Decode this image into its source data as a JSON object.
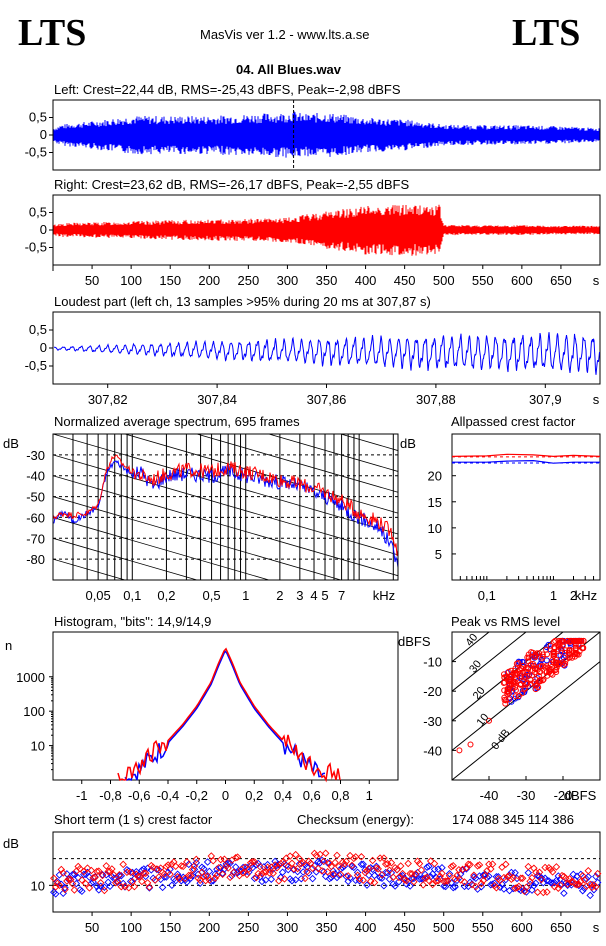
{
  "header": {
    "logo_left": "LTS",
    "logo_right": "LTS",
    "app_title": "MasVis ver 1.2 - www.lts.a.se",
    "file_title": "04. All Blues.wav"
  },
  "colors": {
    "left": "#0000ff",
    "right": "#ff0000",
    "text": "#000000"
  },
  "panels": {
    "left_title": "Left: Crest=22,44 dB, RMS=-25,43 dBFS, Peak=-2,98 dBFS",
    "right_title": "Right: Crest=23,62 dB, RMS=-26,17 dBFS, Peak=-2,55 dBFS",
    "loudest_title": "Loudest part (left  ch, 13 samples >95% during 20 ms at 307,87 s)",
    "spectrum_title": "Normalized average spectrum, 695 frames",
    "allpass_title": "Allpassed crest factor",
    "histogram_title": "Histogram, \"bits\": 14,9/14,9",
    "peakrms_title": "Peak vs RMS level",
    "shortcrest_title": "Short term (1 s) crest factor",
    "checksum_label": "Checksum (energy):",
    "checksum_value": "174 088 345 114 386"
  },
  "chart_data": [
    {
      "id": "left_waveform",
      "type": "area",
      "title": "Left: Crest=22,44 dB, RMS=-25,43 dBFS, Peak=-2,98 dBFS",
      "series": [
        {
          "name": "Left",
          "color": "#0000ff"
        }
      ],
      "x_range": [
        0,
        700
      ],
      "xlabel": "s",
      "ylim": [
        -1,
        1
      ],
      "yticks": [
        "0,5",
        "0",
        "-0,5"
      ],
      "envelope_x": [
        0,
        10,
        50,
        100,
        150,
        200,
        250,
        300,
        307,
        320,
        350,
        400,
        450,
        500,
        550,
        600,
        650,
        695
      ],
      "envelope_peak": [
        0.2,
        0.3,
        0.4,
        0.55,
        0.55,
        0.55,
        0.6,
        0.65,
        0.71,
        0.6,
        0.65,
        0.5,
        0.45,
        0.3,
        0.28,
        0.28,
        0.25,
        0.2
      ],
      "marker_x": 307.87
    },
    {
      "id": "right_waveform",
      "type": "area",
      "title": "Right: Crest=23,62 dB, RMS=-26,17 dBFS, Peak=-2,55 dBFS",
      "series": [
        {
          "name": "Right",
          "color": "#ff0000"
        }
      ],
      "x_range": [
        0,
        700
      ],
      "xlabel": "s",
      "ylim": [
        -1,
        1
      ],
      "yticks": [
        "0,5",
        "0",
        "-0,5"
      ],
      "xticks": [
        "50",
        "100",
        "150",
        "200",
        "250",
        "300",
        "350",
        "400",
        "450",
        "500",
        "550",
        "600",
        "650",
        "s"
      ],
      "envelope_x": [
        0,
        10,
        50,
        100,
        150,
        200,
        250,
        300,
        350,
        400,
        450,
        495,
        500,
        550,
        600,
        650,
        695
      ],
      "envelope_peak": [
        0.15,
        0.2,
        0.22,
        0.25,
        0.28,
        0.3,
        0.32,
        0.35,
        0.55,
        0.7,
        0.74,
        0.72,
        0.15,
        0.14,
        0.14,
        0.13,
        0.12
      ]
    },
    {
      "id": "loudest_part",
      "type": "line",
      "title": "Loudest part (left  ch, 13 samples >95% during 20 ms at 307,87 s)",
      "series": [
        {
          "name": "Left",
          "color": "#0000ff"
        }
      ],
      "x_range": [
        307.81,
        307.91
      ],
      "xlabel": "s",
      "ylim": [
        -1,
        1
      ],
      "yticks": [
        "0,5",
        "0",
        "-0,5"
      ],
      "xticks": [
        "307,82",
        "307,84",
        "307,86",
        "307,88",
        "307,9",
        "s"
      ],
      "envelope_x": [
        307.81,
        307.82,
        307.84,
        307.86,
        307.88,
        307.91
      ],
      "envelope_peak": [
        0.05,
        0.15,
        0.35,
        0.5,
        0.65,
        0.75
      ],
      "cycles": 62
    },
    {
      "id": "spectrum",
      "type": "line",
      "title": "Normalized average spectrum, 695 frames",
      "xscale": "log",
      "xlabel": "kHz",
      "ylabel": "dB",
      "xlim": [
        0.02,
        22
      ],
      "ylim": [
        -90,
        -20
      ],
      "xticks": [
        "0,05",
        "0,1",
        "0,2",
        "0,5",
        "1",
        "2",
        "3",
        "4",
        "5",
        "7",
        "kHz"
      ],
      "yticks": [
        "-30",
        "-40",
        "-50",
        "-60",
        "-70",
        "-80"
      ],
      "series": [
        {
          "name": "Left",
          "color": "#0000ff",
          "x": [
            0.02,
            0.025,
            0.03,
            0.04,
            0.05,
            0.06,
            0.07,
            0.08,
            0.1,
            0.12,
            0.15,
            0.2,
            0.3,
            0.5,
            0.7,
            1,
            1.5,
            2,
            3,
            4,
            5,
            7,
            10,
            15,
            20,
            22
          ],
          "y": [
            -62,
            -57,
            -62,
            -58,
            -55,
            -38,
            -33,
            -35,
            -40,
            -38,
            -45,
            -40,
            -39,
            -40,
            -38,
            -40,
            -42,
            -43,
            -45,
            -48,
            -50,
            -55,
            -60,
            -65,
            -75,
            -85
          ]
        },
        {
          "name": "Right",
          "color": "#ff0000",
          "x": [
            0.02,
            0.025,
            0.03,
            0.04,
            0.05,
            0.06,
            0.07,
            0.08,
            0.1,
            0.12,
            0.15,
            0.2,
            0.3,
            0.5,
            0.7,
            1,
            1.5,
            2,
            3,
            4,
            5,
            7,
            10,
            15,
            20,
            22
          ],
          "y": [
            -60,
            -58,
            -59,
            -58,
            -54,
            -36,
            -30,
            -34,
            -38,
            -40,
            -42,
            -39,
            -37,
            -38,
            -36,
            -38,
            -40,
            -42,
            -44,
            -46,
            -48,
            -52,
            -58,
            -62,
            -68,
            -78
          ]
        }
      ]
    },
    {
      "id": "allpass_crest",
      "type": "line",
      "title": "Allpassed crest factor",
      "xscale": "log",
      "xlabel": "kHz",
      "ylabel": "dB",
      "xlim": [
        0.03,
        5
      ],
      "ylim": [
        0,
        28
      ],
      "xticks": [
        "0,1",
        "1",
        "2",
        "kHz"
      ],
      "yticks": [
        "20",
        "15",
        "10",
        "5"
      ],
      "series": [
        {
          "name": "Left",
          "color": "#0000ff",
          "x": [
            0.03,
            0.1,
            0.2,
            0.5,
            1,
            2,
            5
          ],
          "y": [
            22.6,
            22.6,
            22.8,
            22.9,
            22.4,
            22.6,
            22.6
          ]
        },
        {
          "name": "Right",
          "color": "#ff0000",
          "x": [
            0.03,
            0.1,
            0.2,
            0.5,
            1,
            2,
            5
          ],
          "y": [
            23.7,
            23.8,
            24.1,
            24.0,
            23.7,
            23.9,
            23.7
          ]
        }
      ],
      "reference_levels": {
        "left": 22.44,
        "right": 23.62
      }
    },
    {
      "id": "histogram",
      "type": "line",
      "title": "Histogram, \"bits\": 14,9/14,9",
      "ylabel": "n",
      "yscale": "log",
      "xlim": [
        -1.2,
        1.2
      ],
      "ylim": [
        1,
        20000
      ],
      "xticks": [
        "-1",
        "-0,8",
        "-0,6",
        "-0,4",
        "-0,2",
        "0",
        "0,2",
        "0,4",
        "0,6",
        "0,8",
        "1"
      ],
      "yticks": [
        "1000",
        "100",
        "10"
      ],
      "series": [
        {
          "name": "Left",
          "color": "#0000ff",
          "x": [
            -0.7,
            -0.6,
            -0.5,
            -0.4,
            -0.3,
            -0.2,
            -0.1,
            -0.05,
            0,
            0.05,
            0.1,
            0.2,
            0.3,
            0.4,
            0.5,
            0.6,
            0.7
          ],
          "y": [
            1,
            2,
            5,
            12,
            35,
            120,
            600,
            2000,
            6000,
            2000,
            600,
            120,
            35,
            12,
            5,
            2,
            1
          ]
        },
        {
          "name": "Right",
          "color": "#ff0000",
          "x": [
            -0.75,
            -0.6,
            -0.5,
            -0.4,
            -0.3,
            -0.2,
            -0.1,
            -0.05,
            0,
            0.05,
            0.1,
            0.2,
            0.3,
            0.4,
            0.5,
            0.6,
            0.8
          ],
          "y": [
            1,
            3,
            6,
            14,
            40,
            140,
            700,
            2400,
            7000,
            2400,
            700,
            140,
            40,
            14,
            6,
            3,
            1
          ]
        }
      ]
    },
    {
      "id": "peak_vs_rms",
      "type": "scatter",
      "title": "Peak vs RMS level",
      "xlabel": "dBFS",
      "ylabel": "dBFS",
      "xlim": [
        -50,
        -10
      ],
      "ylim": [
        -50,
        0
      ],
      "xticks": [
        "-40",
        "-30",
        "-20",
        "dBFS"
      ],
      "yticks": [
        "-10",
        "-20",
        "-30",
        "-40"
      ],
      "diagonal_labels": [
        "40",
        "30",
        "20",
        "10",
        "0 dB"
      ],
      "series": [
        {
          "name": "Left",
          "color": "#0000ff",
          "cluster": {
            "rms": [
              -35,
              -15
            ],
            "peak": [
              -25,
              -5
            ],
            "n": 80
          }
        },
        {
          "name": "Right",
          "color": "#ff0000",
          "cluster": {
            "rms": [
              -36,
              -14
            ],
            "peak": [
              -25,
              -4
            ],
            "n": 220
          }
        }
      ],
      "outliers": [
        {
          "x": -48,
          "y": -40
        },
        {
          "x": -45,
          "y": -38
        },
        {
          "x": -40,
          "y": -30
        }
      ]
    },
    {
      "id": "short_term_crest",
      "type": "scatter",
      "title": "Short term (1 s) crest factor",
      "xlabel": "s",
      "ylabel": "dB",
      "xlim": [
        0,
        700
      ],
      "ylim": [
        0,
        30
      ],
      "xticks": [
        "50",
        "100",
        "150",
        "200",
        "250",
        "300",
        "350",
        "400",
        "450",
        "500",
        "550",
        "600",
        "650",
        "s"
      ],
      "yticks": [
        "10"
      ],
      "reference_lines": [
        10,
        20
      ],
      "series": [
        {
          "name": "Left",
          "color": "#0000ff",
          "mean": 13,
          "spread": 4
        },
        {
          "name": "Right",
          "color": "#ff0000",
          "mean": 14,
          "spread": 5
        }
      ],
      "trend_x": [
        0,
        100,
        200,
        300,
        350,
        400,
        500,
        600,
        695
      ],
      "trend_y": [
        11,
        13,
        16,
        16,
        17,
        15,
        14,
        12,
        11
      ]
    }
  ]
}
